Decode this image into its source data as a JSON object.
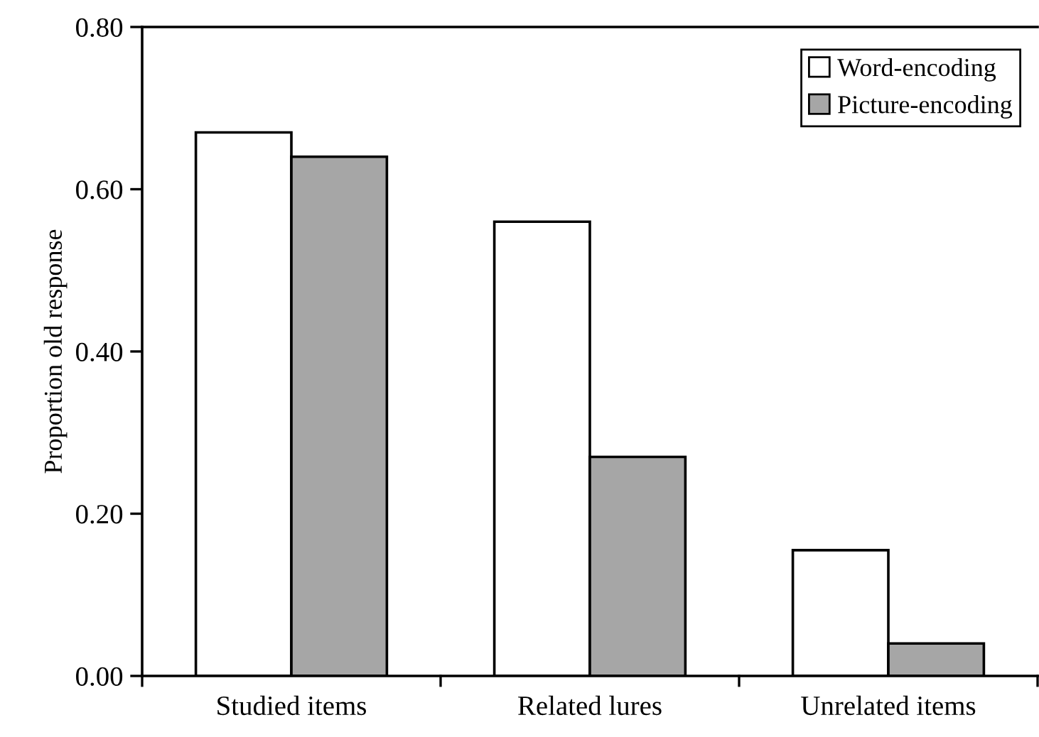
{
  "chart_data": {
    "type": "bar",
    "ylabel": "Proportion old response",
    "categories": [
      "Studied items",
      "Related lures",
      "Unrelated items"
    ],
    "series": [
      {
        "name": "Word-encoding",
        "color": "#ffffff",
        "values": [
          0.67,
          0.56,
          0.155
        ]
      },
      {
        "name": "Picture-encoding",
        "color": "#a6a6a6",
        "values": [
          0.64,
          0.27,
          0.04
        ]
      }
    ],
    "ylim": [
      0,
      0.8
    ],
    "yticks": [
      {
        "value": 0,
        "label": "0.00"
      },
      {
        "value": 0.2,
        "label": "0.20"
      },
      {
        "value": 0.4,
        "label": "0.40"
      },
      {
        "value": 0.6,
        "label": "0.60"
      },
      {
        "value": 0.8,
        "label": "0.80"
      }
    ],
    "grid": false,
    "legend": "top right"
  }
}
